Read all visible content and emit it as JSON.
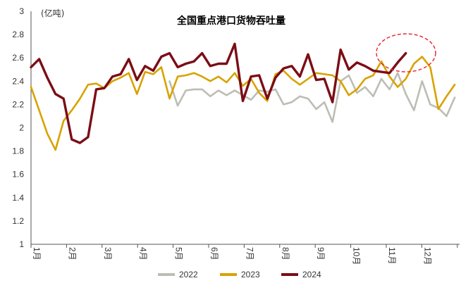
{
  "chart_data": {
    "type": "line",
    "title": "全国重点港口货物吞吐量",
    "unit_label": "(亿吨)",
    "ylim": [
      1,
      3
    ],
    "yticks": [
      "1",
      "1.2",
      "1.4",
      "1.6",
      "1.8",
      "2",
      "2.2",
      "2.4",
      "2.6",
      "2.8",
      "3"
    ],
    "months": [
      "1月",
      "2月",
      "3月",
      "4月",
      "5月",
      "6月",
      "7月",
      "8月",
      "9月",
      "10月",
      "11月",
      "12月"
    ],
    "grid": false,
    "legend_position": "bottom-center",
    "series": [
      {
        "name": "2022",
        "color": "#bdbdb5",
        "x": [
          17,
          18,
          19,
          20,
          21,
          22,
          23,
          24,
          25,
          26,
          27,
          28,
          29,
          30,
          31,
          32,
          33,
          34,
          35,
          36,
          37,
          38,
          39,
          40,
          41,
          42,
          43,
          44,
          45,
          46,
          47,
          48,
          49,
          50,
          51,
          52
        ],
        "values": [
          2.4,
          2.19,
          2.32,
          2.33,
          2.33,
          2.27,
          2.32,
          2.28,
          2.32,
          2.28,
          2.24,
          2.32,
          2.31,
          2.33,
          2.2,
          2.22,
          2.27,
          2.25,
          2.16,
          2.22,
          2.05,
          2.4,
          2.45,
          2.3,
          2.35,
          2.27,
          2.42,
          2.33,
          2.47,
          2.29,
          2.15,
          2.4,
          2.2,
          2.17,
          2.1,
          2.26
        ]
      },
      {
        "name": "2023",
        "color": "#d8a200",
        "x": [
          0,
          1,
          2,
          3,
          4,
          5,
          6,
          7,
          8,
          9,
          10,
          11,
          12,
          13,
          14,
          15,
          16,
          17,
          18,
          19,
          20,
          21,
          22,
          23,
          24,
          25,
          26,
          27,
          28,
          29,
          30,
          31,
          32,
          33,
          34,
          35,
          36,
          37,
          38,
          39,
          40,
          41,
          42,
          43,
          44,
          45,
          46,
          47,
          48,
          49,
          50,
          51,
          52
        ],
        "values": [
          2.35,
          2.15,
          1.95,
          1.81,
          2.06,
          2.15,
          2.25,
          2.37,
          2.38,
          2.34,
          2.4,
          2.43,
          2.47,
          2.29,
          2.48,
          2.46,
          2.52,
          2.25,
          2.44,
          2.45,
          2.47,
          2.44,
          2.4,
          2.44,
          2.39,
          2.47,
          2.36,
          2.42,
          2.3,
          2.23,
          2.46,
          2.49,
          2.42,
          2.37,
          2.42,
          2.47,
          2.46,
          2.45,
          2.4,
          2.28,
          2.33,
          2.42,
          2.45,
          2.57,
          2.44,
          2.35,
          2.42,
          2.55,
          2.61,
          2.52,
          2.16,
          2.27,
          2.37
        ]
      },
      {
        "name": "2024",
        "color": "#7b0d16",
        "x": [
          0,
          1,
          2,
          3,
          4,
          5,
          6,
          7,
          8,
          9,
          10,
          11,
          12,
          13,
          14,
          15,
          16,
          17,
          18,
          19,
          20,
          21,
          22,
          23,
          24,
          25,
          26,
          27,
          28,
          29,
          30,
          31,
          32,
          33,
          34,
          35,
          36,
          37,
          38,
          39,
          40,
          41,
          42,
          43,
          44,
          45,
          46
        ],
        "values": [
          2.52,
          2.59,
          2.43,
          2.29,
          2.25,
          1.9,
          1.87,
          1.92,
          2.33,
          2.34,
          2.44,
          2.46,
          2.59,
          2.41,
          2.53,
          2.49,
          2.61,
          2.64,
          2.52,
          2.55,
          2.57,
          2.64,
          2.53,
          2.55,
          2.55,
          2.72,
          2.23,
          2.44,
          2.45,
          2.25,
          2.43,
          2.51,
          2.53,
          2.44,
          2.63,
          2.41,
          2.42,
          2.22,
          2.67,
          2.5,
          2.56,
          2.53,
          2.49,
          2.48,
          2.47,
          2.56,
          2.64
        ]
      }
    ]
  }
}
